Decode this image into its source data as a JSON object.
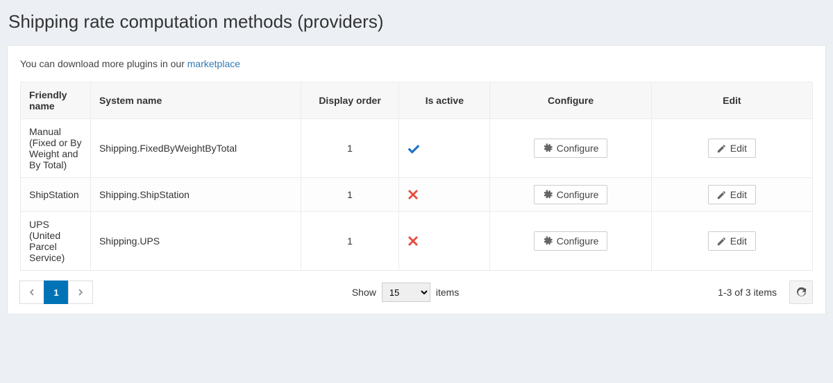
{
  "page_title": "Shipping rate computation methods (providers)",
  "hint_prefix": "You can download more plugins in our ",
  "hint_link_text": "marketplace",
  "columns": {
    "friendly": "Friendly name",
    "system": "System name",
    "order": "Display order",
    "active": "Is active",
    "configure": "Configure",
    "edit": "Edit"
  },
  "configure_label": "Configure",
  "edit_label": "Edit",
  "rows": [
    {
      "friendly": "Manual (Fixed or By Weight and By Total)",
      "system": "Shipping.FixedByWeightByTotal",
      "order": "1",
      "active": true
    },
    {
      "friendly": "ShipStation",
      "system": "Shipping.ShipStation",
      "order": "1",
      "active": false
    },
    {
      "friendly": "UPS (United Parcel Service)",
      "system": "Shipping.UPS",
      "order": "1",
      "active": false
    }
  ],
  "pager": {
    "current_page": "1",
    "show_label": "Show",
    "items_label": "items",
    "page_size": "15",
    "range_text": "1-3 of 3 items"
  },
  "colors": {
    "page_bg": "#ecf0f5",
    "link": "#337ab7",
    "active_page_bg": "#0073b7",
    "check": "#1e74c7",
    "cross": "#e74c3c"
  }
}
